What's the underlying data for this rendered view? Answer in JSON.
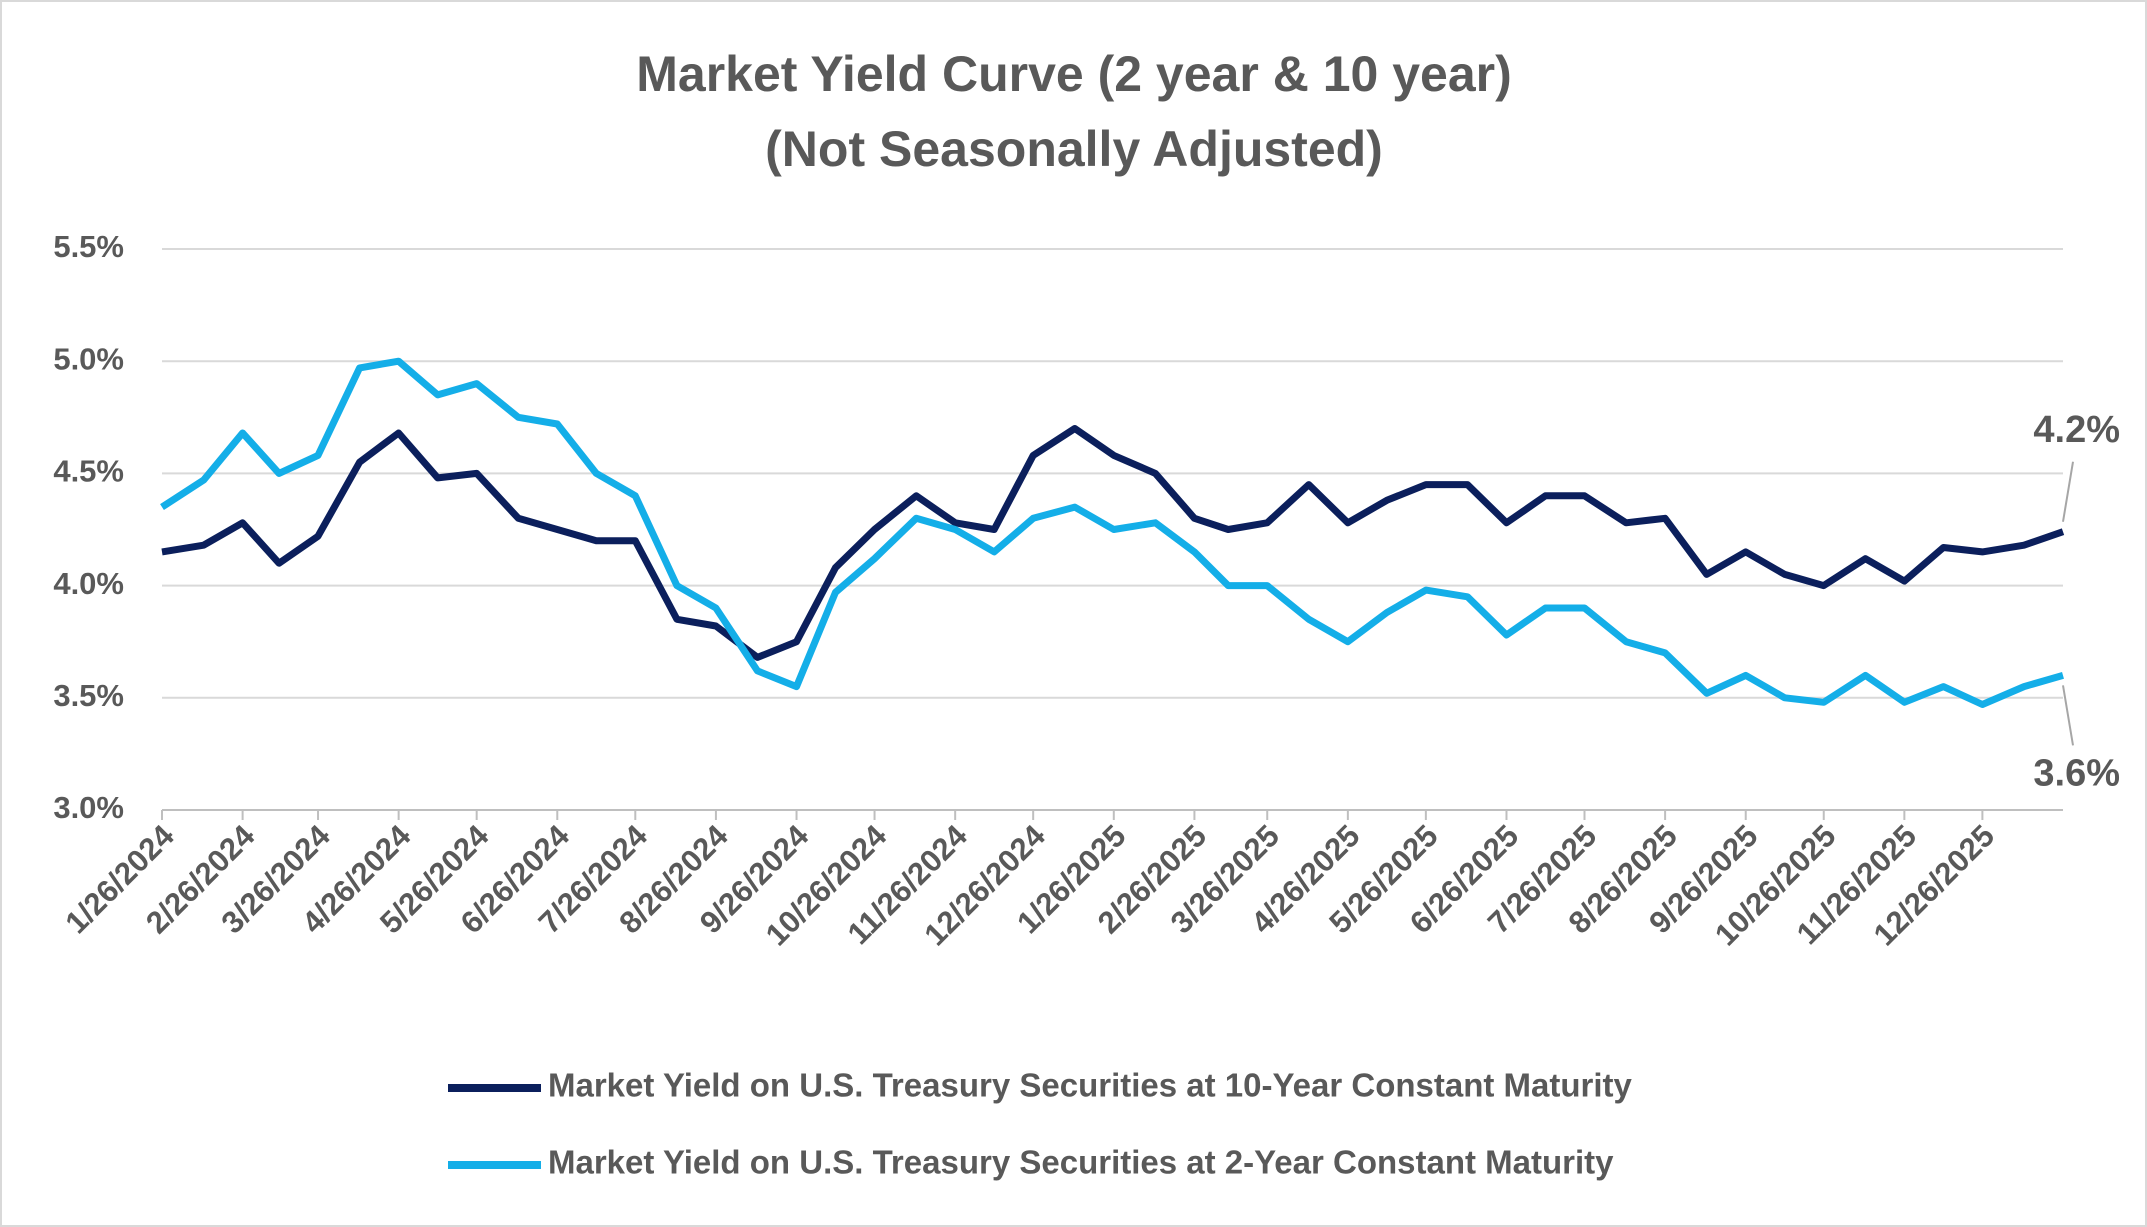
{
  "chart_data": {
    "type": "line",
    "title": "Market Yield Curve (2 year & 10 year)",
    "subtitle": "(Not Seasonally Adjusted)",
    "x": [
      "1/26/2024",
      "2/11/2024",
      "2/26/2024",
      "3/11/2024",
      "3/26/2024",
      "4/11/2024",
      "4/26/2024",
      "5/11/2024",
      "5/26/2024",
      "6/11/2024",
      "6/26/2024",
      "7/11/2024",
      "7/26/2024",
      "8/11/2024",
      "8/26/2024",
      "9/11/2024",
      "9/26/2024",
      "10/11/2024",
      "10/26/2024",
      "11/11/2024",
      "11/26/2024",
      "12/11/2024",
      "12/26/2024",
      "1/11/2025",
      "1/26/2025",
      "2/11/2025",
      "2/26/2025",
      "3/11/2025",
      "3/26/2025",
      "4/11/2025",
      "4/26/2025",
      "5/11/2025",
      "5/26/2025",
      "6/11/2025",
      "6/26/2025",
      "7/11/2025",
      "7/26/2025",
      "8/11/2025",
      "8/26/2025",
      "9/11/2025",
      "9/26/2025",
      "10/11/2025",
      "10/26/2025",
      "11/11/2025",
      "11/26/2025",
      "12/11/2025",
      "12/26/2025",
      "1/11/2026",
      "1/26/2026"
    ],
    "series": [
      {
        "name": "Market Yield on U.S. Treasury Securities at 10-Year Constant Maturity",
        "color": "#0b1f5c",
        "end_label": "4.2%",
        "values": [
          4.15,
          4.18,
          4.28,
          4.1,
          4.22,
          4.55,
          4.68,
          4.48,
          4.5,
          4.3,
          4.25,
          4.2,
          4.2,
          3.85,
          3.82,
          3.68,
          3.75,
          4.08,
          4.25,
          4.4,
          4.28,
          4.25,
          4.58,
          4.7,
          4.58,
          4.5,
          4.3,
          4.25,
          4.28,
          4.45,
          4.28,
          4.38,
          4.45,
          4.45,
          4.28,
          4.4,
          4.4,
          4.28,
          4.3,
          4.05,
          4.15,
          4.05,
          4.0,
          4.12,
          4.02,
          4.17,
          4.15,
          4.18,
          4.24
        ]
      },
      {
        "name": "Market Yield on U.S. Treasury Securities at 2-Year Constant Maturity",
        "color": "#14aee8",
        "end_label": "3.6%",
        "values": [
          4.35,
          4.47,
          4.68,
          4.5,
          4.58,
          4.97,
          5.0,
          4.85,
          4.9,
          4.75,
          4.72,
          4.5,
          4.4,
          4.0,
          3.9,
          3.62,
          3.55,
          3.97,
          4.12,
          4.3,
          4.25,
          4.15,
          4.3,
          4.35,
          4.25,
          4.28,
          4.15,
          4.0,
          4.0,
          3.85,
          3.75,
          3.88,
          3.98,
          3.95,
          3.78,
          3.9,
          3.9,
          3.75,
          3.7,
          3.52,
          3.6,
          3.5,
          3.48,
          3.6,
          3.48,
          3.55,
          3.47,
          3.55,
          3.6
        ]
      }
    ],
    "xlim": [
      "1/26/2024",
      "1/26/2026"
    ],
    "xticks": [
      "1/26/2024",
      "2/26/2024",
      "3/26/2024",
      "4/26/2024",
      "5/26/2024",
      "6/26/2024",
      "7/26/2024",
      "8/26/2024",
      "9/26/2024",
      "10/26/2024",
      "11/26/2024",
      "12/26/2024",
      "1/26/2025",
      "2/26/2025",
      "3/26/2025",
      "4/26/2025",
      "5/26/2025",
      "6/26/2025",
      "7/26/2025",
      "8/26/2025",
      "9/26/2025",
      "10/26/2025",
      "11/26/2025",
      "12/26/2025"
    ],
    "ylim": [
      3.0,
      5.5
    ],
    "yticks": [
      {
        "value": 3.0,
        "label": "3.0%"
      },
      {
        "value": 3.5,
        "label": "3.5%"
      },
      {
        "value": 4.0,
        "label": "4.0%"
      },
      {
        "value": 4.5,
        "label": "4.5%"
      },
      {
        "value": 5.0,
        "label": "5.0%"
      },
      {
        "value": 5.5,
        "label": "5.5%"
      }
    ],
    "grid": true,
    "legend": "bottom"
  }
}
